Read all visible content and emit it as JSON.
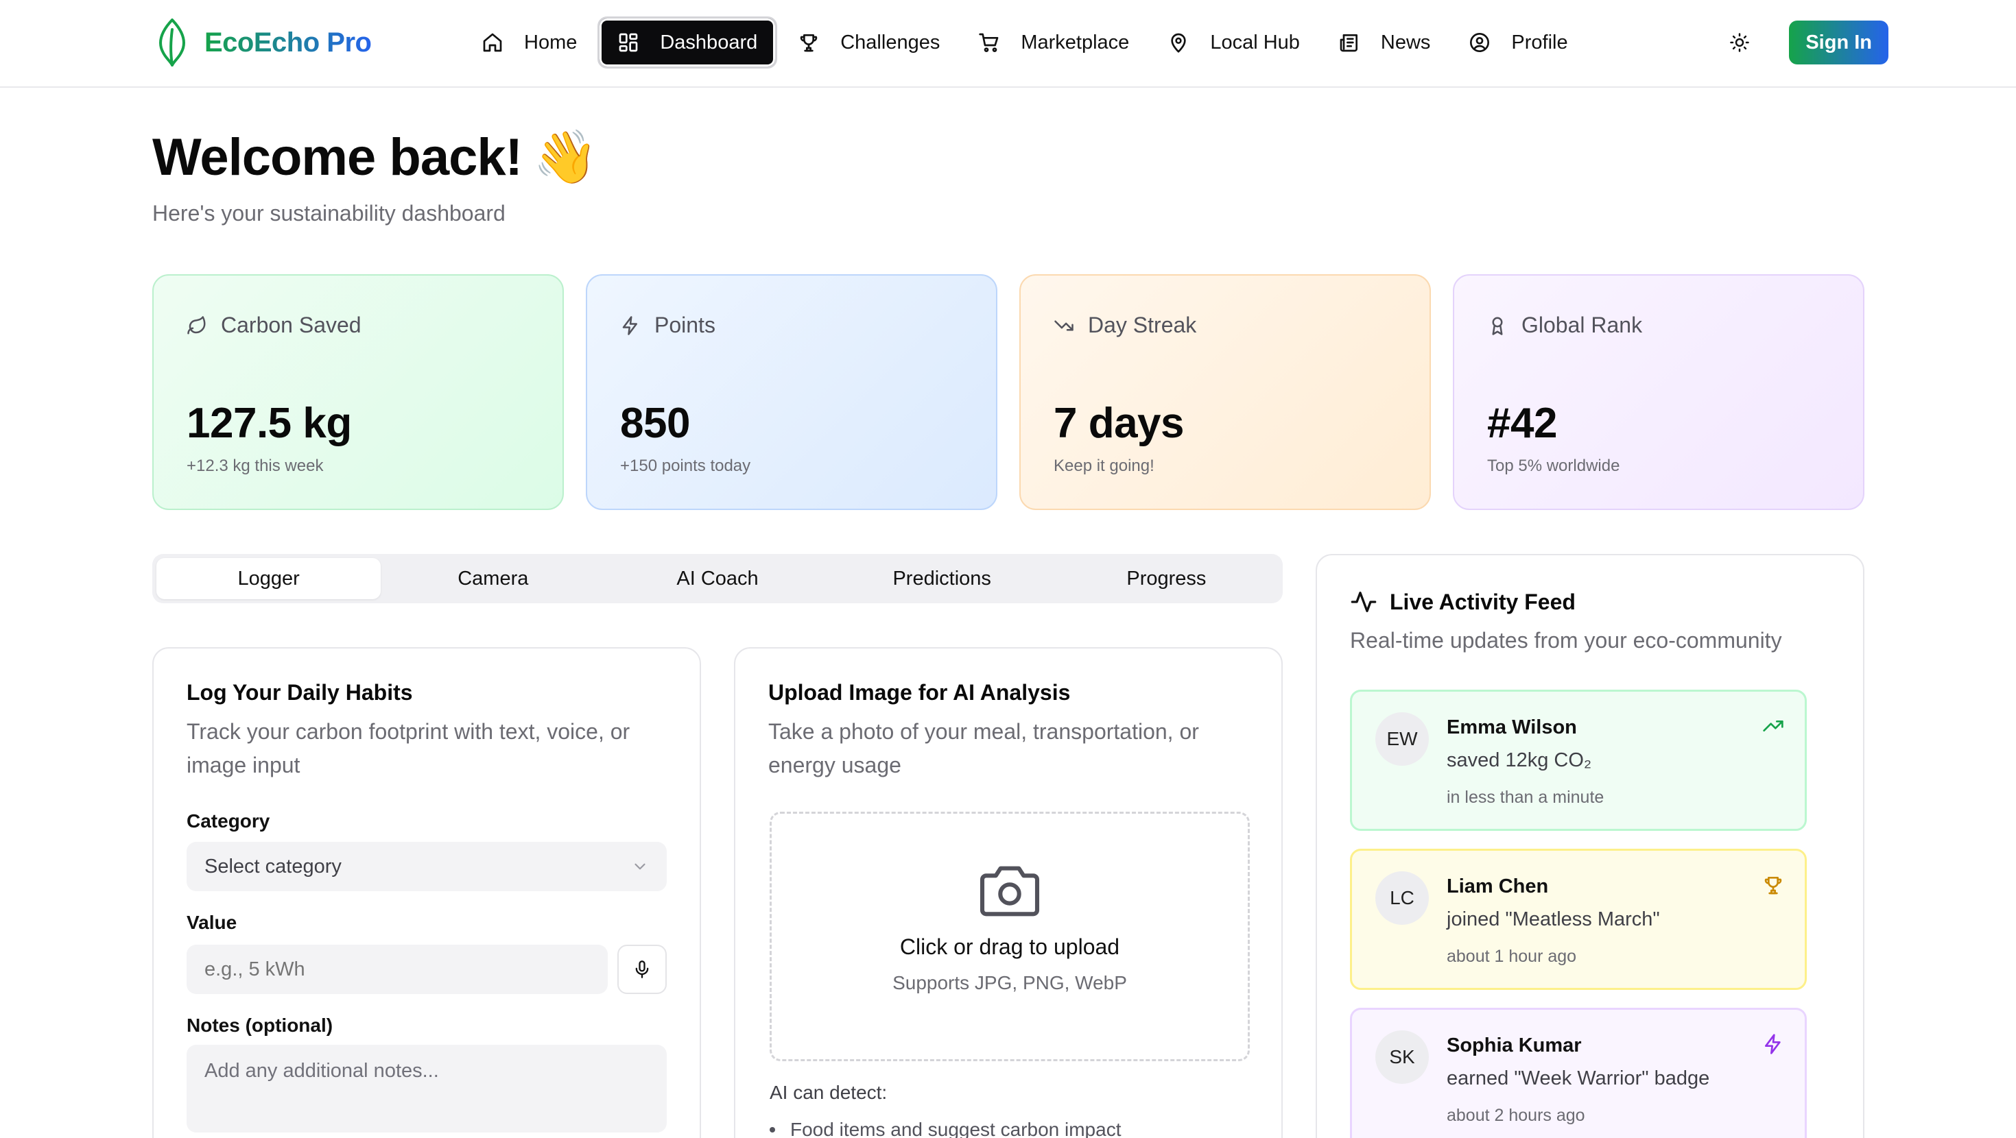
{
  "brand": {
    "name": "EcoEcho Pro"
  },
  "nav": {
    "items": [
      {
        "label": "Home",
        "icon": "home-icon"
      },
      {
        "label": "Dashboard",
        "icon": "dashboard-icon",
        "active": true
      },
      {
        "label": "Challenges",
        "icon": "trophy-icon"
      },
      {
        "label": "Marketplace",
        "icon": "cart-icon"
      },
      {
        "label": "Local Hub",
        "icon": "map-pin-icon"
      },
      {
        "label": "News",
        "icon": "newspaper-icon"
      },
      {
        "label": "Profile",
        "icon": "user-circle-icon"
      }
    ],
    "theme_icon": "sun-icon",
    "signin_label": "Sign In"
  },
  "header": {
    "title": "Welcome back!",
    "emoji": "👋",
    "subtitle": "Here's your sustainability dashboard"
  },
  "stats": [
    {
      "label": "Carbon Saved",
      "value": "127.5 kg",
      "note": "+12.3 kg this week",
      "icon": "leaf-icon",
      "color": "#dcfce7"
    },
    {
      "label": "Points",
      "value": "850",
      "note": "+150 points today",
      "icon": "zap-icon",
      "color": "#dbeafe"
    },
    {
      "label": "Day Streak",
      "value": "7 days",
      "note": "Keep it going!",
      "icon": "trending-down-icon",
      "color": "#ffedd5"
    },
    {
      "label": "Global Rank",
      "value": "#42",
      "note": "Top 5% worldwide",
      "icon": "award-icon",
      "color": "#f3e8ff"
    }
  ],
  "tabs": [
    {
      "label": "Logger",
      "active": true
    },
    {
      "label": "Camera"
    },
    {
      "label": "AI Coach"
    },
    {
      "label": "Predictions"
    },
    {
      "label": "Progress"
    }
  ],
  "logger": {
    "title": "Log Your Daily Habits",
    "description": "Track your carbon footprint with text, voice, or image input",
    "category_label": "Category",
    "category_value": "Select category",
    "value_label": "Value",
    "value_placeholder": "e.g., 5 kWh",
    "notes_label": "Notes (optional)",
    "notes_placeholder": "Add any additional notes..."
  },
  "upload": {
    "title": "Upload Image for AI Analysis",
    "description": "Take a photo of your meal, transportation, or energy usage",
    "drop_title": "Click or drag to upload",
    "drop_sub": "Supports JPG, PNG, WebP",
    "detect_label": "AI can detect:",
    "detect_items": [
      "Food items and suggest carbon impact"
    ]
  },
  "feed": {
    "title": "Live Activity Feed",
    "description": "Real-time updates from your eco-community",
    "items": [
      {
        "initials": "EW",
        "name": "Emma Wilson",
        "text": "saved 12kg CO₂",
        "time": "in less than a minute",
        "icon": "trending-up-icon",
        "color": "#16a34a"
      },
      {
        "initials": "LC",
        "name": "Liam Chen",
        "text": "joined \"Meatless March\"",
        "time": "about 1 hour ago",
        "icon": "trophy-icon",
        "color": "#ca8a04"
      },
      {
        "initials": "SK",
        "name": "Sophia Kumar",
        "text": "earned \"Week Warrior\" badge",
        "time": "about 2 hours ago",
        "icon": "zap-icon",
        "color": "#9333ea"
      }
    ]
  }
}
